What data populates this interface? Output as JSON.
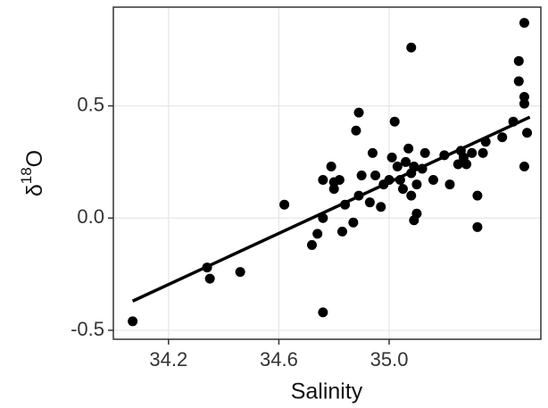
{
  "chart_data": {
    "type": "scatter",
    "xlabel": "Salinity",
    "ylabel": {
      "prefix": "δ",
      "superscript": "18",
      "suffix": "O"
    },
    "xlim": [
      34.0,
      35.55
    ],
    "ylim": [
      -0.54,
      0.94
    ],
    "xticks": [
      34.2,
      34.6,
      {
        "value": 35,
        "label": "35.0"
      }
    ],
    "yticks": [
      -0.5,
      {
        "value": 0,
        "label": "0.0"
      },
      0.5
    ],
    "grid": true,
    "color": "#000000",
    "x": [
      34.07,
      34.34,
      34.35,
      34.46,
      34.62,
      34.72,
      34.74,
      34.76,
      34.76,
      34.76,
      34.79,
      34.8,
      34.8,
      34.82,
      34.83,
      34.84,
      34.87,
      34.88,
      34.89,
      34.89,
      34.9,
      34.93,
      34.94,
      34.95,
      34.97,
      34.98,
      35.0,
      35.02,
      35.01,
      35.03,
      35.04,
      35.05,
      35.06,
      35.07,
      35.08,
      35.08,
      35.09,
      35.1,
      35.1,
      35.08,
      35.09,
      35.12,
      35.13,
      35.16,
      35.2,
      35.22,
      35.25,
      35.26,
      35.27,
      35.28,
      35.3,
      35.32,
      35.32,
      35.34,
      35.35,
      35.41,
      35.45,
      35.47,
      35.47,
      35.49,
      35.49,
      35.49,
      35.5,
      35.49
    ],
    "values": [
      -0.46,
      -0.22,
      -0.27,
      -0.24,
      0.06,
      -0.12,
      -0.07,
      0.0,
      -0.42,
      0.17,
      0.23,
      0.13,
      0.16,
      0.17,
      -0.06,
      0.06,
      -0.02,
      0.39,
      0.47,
      0.1,
      0.19,
      0.07,
      0.29,
      0.19,
      0.05,
      0.15,
      0.17,
      0.43,
      0.27,
      0.23,
      0.17,
      0.13,
      0.25,
      0.31,
      0.2,
      0.1,
      0.23,
      0.15,
      0.02,
      0.76,
      -0.01,
      0.22,
      0.29,
      0.17,
      0.28,
      0.15,
      0.24,
      0.3,
      0.27,
      0.24,
      0.29,
      0.1,
      -0.04,
      0.29,
      0.34,
      0.36,
      0.43,
      0.7,
      0.61,
      0.87,
      0.54,
      0.51,
      0.38,
      0.23
    ],
    "fit": {
      "x": [
        34.07,
        35.51
      ],
      "y": [
        -0.37,
        0.45
      ]
    }
  }
}
